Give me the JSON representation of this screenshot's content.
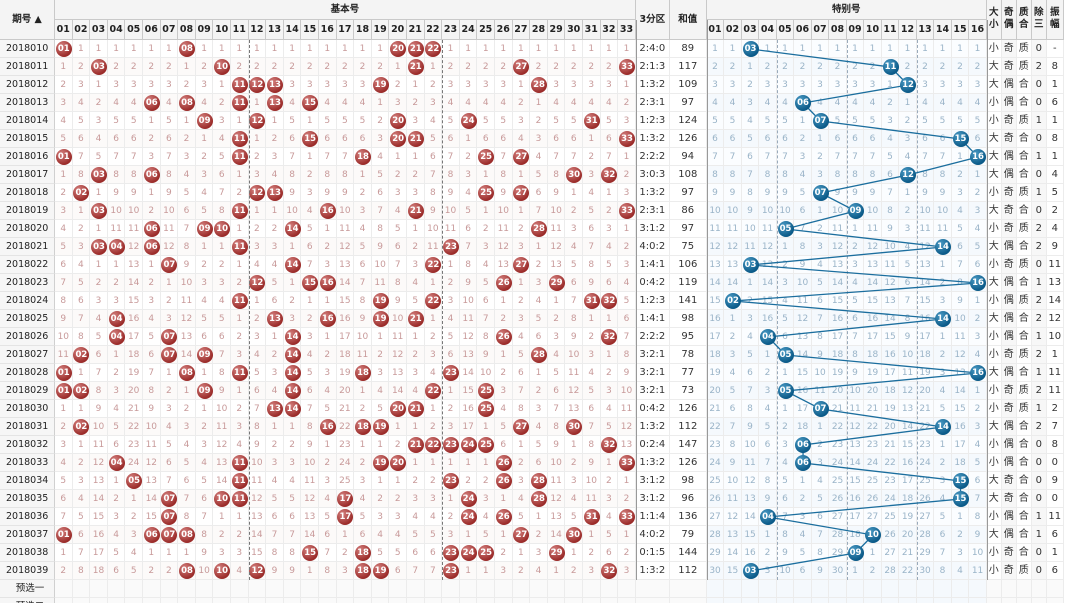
{
  "header": {
    "sort_col": "期号",
    "basic_title": "基本号",
    "zone3": "3分区",
    "sum": "和值",
    "special_title": "特别号",
    "attrs": [
      "大小",
      "奇偶",
      "质合",
      "除三",
      "振幅"
    ]
  },
  "footer": [
    "预选一",
    "预选二"
  ],
  "periods": [
    "2018010",
    "2018011",
    "2018012",
    "2018013",
    "2018014",
    "2018015",
    "2018016",
    "2018017",
    "2018018",
    "2018019",
    "2018020",
    "2018021",
    "2018022",
    "2018023",
    "2018024",
    "2018025",
    "2018026",
    "2018027",
    "2018028",
    "2018029",
    "2018030",
    "2018031",
    "2018032",
    "2018033",
    "2018034",
    "2018035",
    "2018036",
    "2018037",
    "2018038",
    "2018039"
  ],
  "basic_winning": [
    [
      1,
      8,
      20,
      21,
      22
    ],
    [
      3,
      10,
      21,
      27,
      33
    ],
    [
      11,
      12,
      13,
      19,
      28
    ],
    [
      6,
      8,
      11,
      13,
      15
    ],
    [
      9,
      12,
      20,
      24,
      31
    ],
    [
      11,
      15,
      20,
      21,
      33
    ],
    [
      1,
      11,
      18,
      25,
      27
    ],
    [
      3,
      6,
      30,
      32
    ],
    [
      2,
      12,
      13,
      25,
      27
    ],
    [
      3,
      11,
      16,
      21,
      33
    ],
    [
      6,
      9,
      10,
      14,
      28
    ],
    [
      3,
      4,
      6,
      11,
      23
    ],
    [
      7,
      14,
      22,
      27
    ],
    [
      12,
      15,
      16,
      26,
      29
    ],
    [
      11,
      19,
      22,
      31,
      32
    ],
    [
      4,
      13,
      16,
      19,
      21
    ],
    [
      4,
      7,
      14,
      26,
      32
    ],
    [
      2,
      7,
      9,
      14,
      28
    ],
    [
      1,
      8,
      11,
      14,
      18,
      23
    ],
    [
      1,
      2,
      9,
      14,
      22,
      25
    ],
    [
      13,
      14,
      20,
      21,
      25
    ],
    [
      2,
      16,
      18,
      19,
      27,
      30
    ],
    [
      21,
      22,
      23,
      24,
      25,
      32
    ],
    [
      4,
      11,
      19,
      20,
      26,
      33
    ],
    [
      5,
      11,
      23,
      26,
      28
    ],
    [
      7,
      10,
      11,
      17,
      24,
      28
    ],
    [
      7,
      17,
      24,
      26,
      31,
      33
    ],
    [
      1,
      6,
      7,
      8,
      27,
      30
    ],
    [
      15,
      18,
      23,
      24,
      25,
      29
    ],
    [
      8,
      10,
      12,
      18,
      19,
      23,
      32
    ]
  ],
  "special_winning": [
    3,
    11,
    12,
    6,
    7,
    15,
    16,
    12,
    7,
    9,
    5,
    14,
    3,
    16,
    2,
    14,
    4,
    5,
    16,
    5,
    7,
    14,
    6,
    6,
    15,
    15,
    4,
    10,
    9,
    3
  ],
  "zone_ratio": [
    "2:4:0",
    "2:1:3",
    "1:3:2",
    "2:3:1",
    "1:2:3",
    "1:3:2",
    "2:2:2",
    "3:0:3",
    "1:3:2",
    "2:3:1",
    "3:1:2",
    "4:0:2",
    "1:4:1",
    "0:4:2",
    "1:2:3",
    "1:4:1",
    "2:2:2",
    "3:2:1",
    "3:2:1",
    "3:2:1",
    "0:4:2",
    "1:3:2",
    "0:2:4",
    "1:3:2",
    "3:1:2",
    "3:1:2",
    "1:1:4",
    "4:0:2",
    "0:1:5",
    "1:3:2"
  ],
  "sum_values": [
    89,
    117,
    109,
    97,
    124,
    126,
    94,
    108,
    97,
    86,
    97,
    75,
    106,
    119,
    141,
    98,
    95,
    78,
    77,
    73,
    126,
    112,
    147,
    126,
    98,
    96,
    136,
    79,
    144,
    112
  ],
  "attrs": [
    [
      "小",
      "奇",
      "质",
      0,
      "-"
    ],
    [
      "大",
      "奇",
      "质",
      2,
      8
    ],
    [
      "大",
      "偶",
      "合",
      0,
      1
    ],
    [
      "小",
      "偶",
      "合",
      0,
      6
    ],
    [
      "小",
      "奇",
      "质",
      1,
      1
    ],
    [
      "大",
      "奇",
      "合",
      0,
      8
    ],
    [
      "大",
      "偶",
      "合",
      1,
      1
    ],
    [
      "大",
      "偶",
      "合",
      0,
      4
    ],
    [
      "小",
      "奇",
      "质",
      1,
      5
    ],
    [
      "大",
      "奇",
      "合",
      0,
      2
    ],
    [
      "小",
      "奇",
      "质",
      2,
      4
    ],
    [
      "大",
      "偶",
      "合",
      2,
      9
    ],
    [
      "小",
      "奇",
      "质",
      0,
      11
    ],
    [
      "大",
      "偶",
      "合",
      1,
      13
    ],
    [
      "小",
      "偶",
      "质",
      2,
      14
    ],
    [
      "大",
      "偶",
      "合",
      2,
      12
    ],
    [
      "小",
      "偶",
      "合",
      1,
      10
    ],
    [
      "小",
      "奇",
      "质",
      2,
      1
    ],
    [
      "大",
      "偶",
      "合",
      1,
      11
    ],
    [
      "小",
      "奇",
      "质",
      2,
      11
    ],
    [
      "小",
      "奇",
      "质",
      1,
      2
    ],
    [
      "大",
      "偶",
      "合",
      2,
      7
    ],
    [
      "小",
      "偶",
      "合",
      0,
      8
    ],
    [
      "小",
      "偶",
      "合",
      0,
      0
    ],
    [
      "大",
      "奇",
      "合",
      0,
      9
    ],
    [
      "大",
      "奇",
      "合",
      0,
      0
    ],
    [
      "小",
      "偶",
      "合",
      1,
      11
    ],
    [
      "大",
      "偶",
      "合",
      1,
      6
    ],
    [
      "小",
      "奇",
      "合",
      0,
      1
    ],
    [
      "小",
      "奇",
      "质",
      0,
      6
    ]
  ],
  "colors": {
    "basic_ball": "#9b2c2a",
    "special_ball": "#0b5a88",
    "basic_miss": "#c89a9a",
    "special_miss": "#9ab4c8",
    "line": "#1b6e9e"
  }
}
